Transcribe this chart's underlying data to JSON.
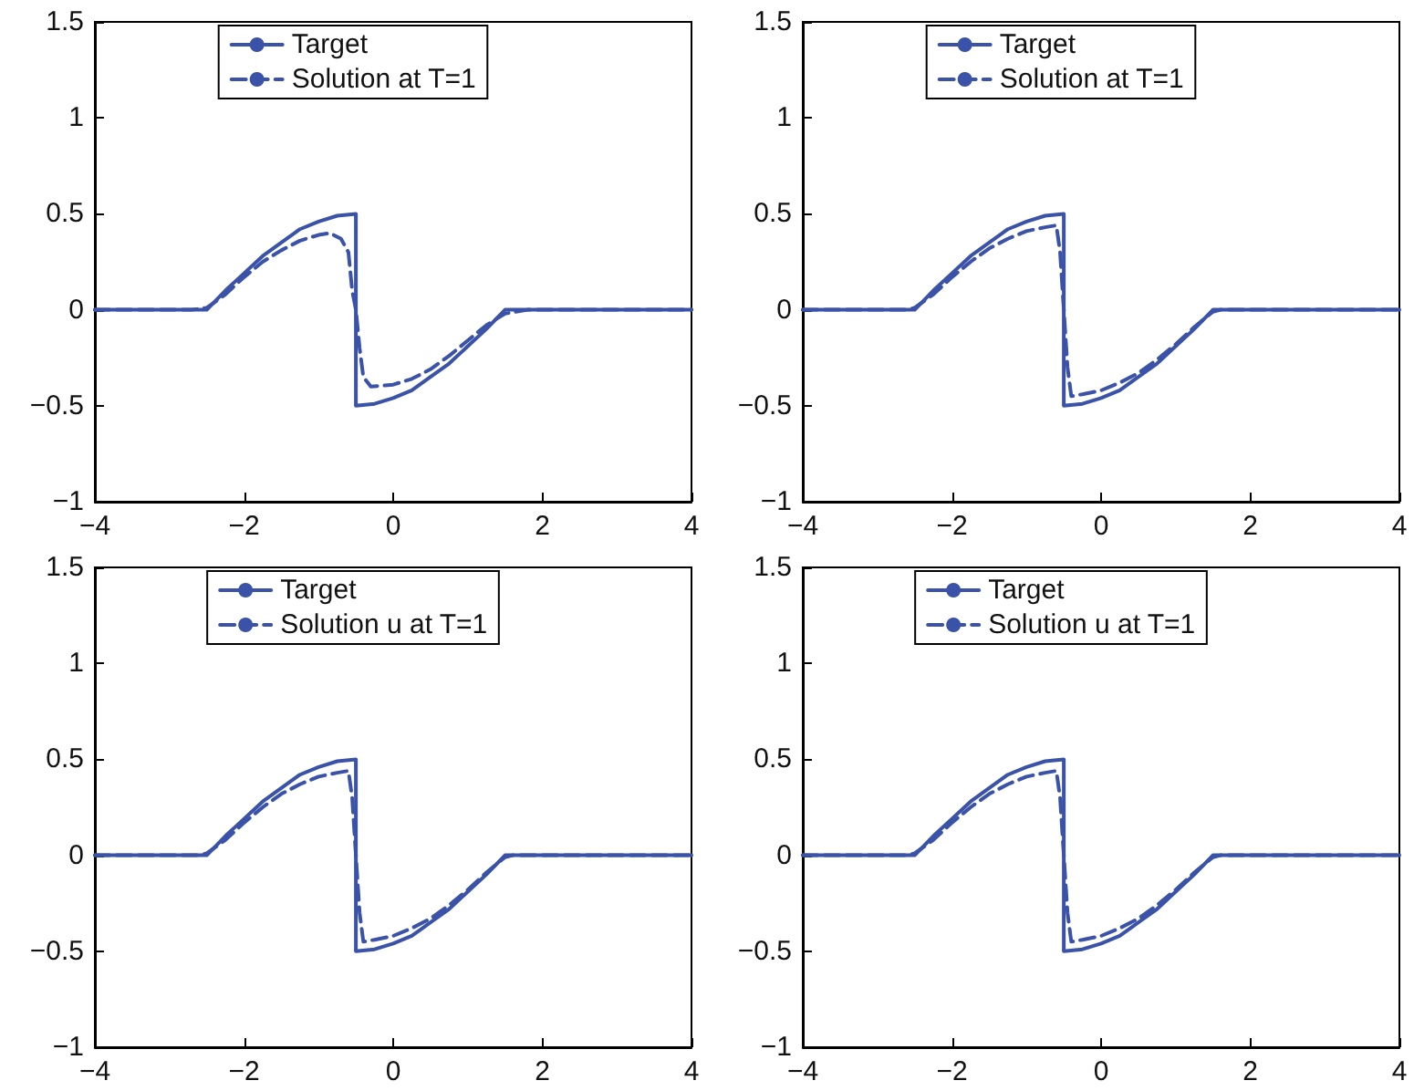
{
  "chart_data": [
    {
      "type": "line",
      "legend": "top",
      "line_style": "solid",
      "marker": "none",
      "xlim": [
        -4,
        4
      ],
      "xticks": [
        -4,
        -2,
        0,
        2,
        4
      ],
      "ylim": [
        -1,
        1.5
      ],
      "yticks": [
        -1,
        -0.5,
        0,
        0.5,
        1,
        1.5
      ],
      "grid": false,
      "series": [
        {
          "name": "Target",
          "color": "#3a52a8",
          "x": [
            -4,
            -2.5,
            -2.25,
            -2,
            -1.75,
            -1.5,
            -1.25,
            -1,
            -0.75,
            -0.5,
            -0.5,
            -0.25,
            0,
            0.25,
            0.5,
            0.75,
            1,
            1.25,
            1.5,
            4
          ],
          "values": [
            0,
            0,
            0.1,
            0.19,
            0.28,
            0.35,
            0.42,
            0.46,
            0.49,
            0.5,
            -0.5,
            -0.49,
            -0.46,
            -0.42,
            -0.35,
            -0.28,
            -0.19,
            -0.1,
            0,
            0
          ]
        },
        {
          "name": "Solution at T=1",
          "color": "#3a52a8",
          "line_style": "dashed",
          "x": [
            -4,
            -2.7,
            -2.5,
            -2.25,
            -2,
            -1.75,
            -1.5,
            -1.25,
            -1,
            -0.85,
            -0.7,
            -0.6,
            -0.55,
            -0.5,
            -0.45,
            -0.4,
            -0.3,
            0,
            0.25,
            0.5,
            0.75,
            1,
            1.25,
            1.5,
            1.8,
            4
          ],
          "values": [
            0,
            0,
            0.01,
            0.08,
            0.17,
            0.25,
            0.31,
            0.36,
            0.39,
            0.4,
            0.37,
            0.3,
            0.1,
            0,
            -0.2,
            -0.35,
            -0.4,
            -0.39,
            -0.36,
            -0.31,
            -0.24,
            -0.16,
            -0.08,
            -0.02,
            0,
            0
          ]
        }
      ]
    },
    {
      "type": "line",
      "legend": "top",
      "line_style": "solid",
      "marker": "none",
      "xlim": [
        -4,
        4
      ],
      "xticks": [
        -4,
        -2,
        0,
        2,
        4
      ],
      "ylim": [
        -1,
        1.5
      ],
      "yticks": [
        -1,
        -0.5,
        0,
        0.5,
        1,
        1.5
      ],
      "grid": false,
      "series": [
        {
          "name": "Target",
          "color": "#3a52a8",
          "x": [
            -4,
            -2.5,
            -2.25,
            -2,
            -1.75,
            -1.5,
            -1.25,
            -1,
            -0.75,
            -0.5,
            -0.5,
            -0.25,
            0,
            0.25,
            0.5,
            0.75,
            1,
            1.25,
            1.5,
            4
          ],
          "values": [
            0,
            0,
            0.1,
            0.19,
            0.28,
            0.35,
            0.42,
            0.46,
            0.49,
            0.5,
            -0.5,
            -0.49,
            -0.46,
            -0.42,
            -0.35,
            -0.28,
            -0.19,
            -0.1,
            0,
            0
          ]
        },
        {
          "name": "Solution at T=1",
          "color": "#3a52a8",
          "line_style": "dashed",
          "x": [
            -4,
            -2.6,
            -2.5,
            -2.25,
            -2,
            -1.75,
            -1.5,
            -1.25,
            -1,
            -0.75,
            -0.6,
            -0.55,
            -0.5,
            -0.45,
            -0.4,
            -0.25,
            0,
            0.25,
            0.5,
            0.75,
            1,
            1.25,
            1.5,
            1.6,
            4
          ],
          "values": [
            0,
            0,
            0.01,
            0.08,
            0.17,
            0.25,
            0.32,
            0.37,
            0.41,
            0.43,
            0.44,
            0.3,
            0,
            -0.3,
            -0.45,
            -0.44,
            -0.42,
            -0.38,
            -0.33,
            -0.26,
            -0.18,
            -0.09,
            -0.01,
            0,
            0
          ]
        }
      ]
    },
    {
      "type": "line",
      "legend": "top",
      "line_style": "solid",
      "marker": "none",
      "xlim": [
        -4,
        4
      ],
      "xticks": [
        -4,
        -2,
        0,
        2,
        4
      ],
      "ylim": [
        -1,
        1.5
      ],
      "yticks": [
        -1,
        -0.5,
        0,
        0.5,
        1,
        1.5
      ],
      "grid": false,
      "series": [
        {
          "name": "Target",
          "color": "#3a52a8",
          "x": [
            -4,
            -2.5,
            -2.25,
            -2,
            -1.75,
            -1.5,
            -1.25,
            -1,
            -0.75,
            -0.5,
            -0.5,
            -0.25,
            0,
            0.25,
            0.5,
            0.75,
            1,
            1.25,
            1.5,
            4
          ],
          "values": [
            0,
            0,
            0.1,
            0.19,
            0.28,
            0.35,
            0.42,
            0.46,
            0.49,
            0.5,
            -0.5,
            -0.49,
            -0.46,
            -0.42,
            -0.35,
            -0.28,
            -0.19,
            -0.1,
            0,
            0
          ]
        },
        {
          "name": "Solution u at T=1",
          "color": "#3a52a8",
          "line_style": "dashed",
          "x": [
            -4,
            -2.6,
            -2.5,
            -2.25,
            -2,
            -1.75,
            -1.5,
            -1.25,
            -1,
            -0.75,
            -0.6,
            -0.55,
            -0.5,
            -0.45,
            -0.4,
            -0.25,
            0,
            0.25,
            0.5,
            0.75,
            1,
            1.25,
            1.5,
            1.6,
            4
          ],
          "values": [
            0,
            0,
            0.01,
            0.08,
            0.17,
            0.25,
            0.32,
            0.37,
            0.41,
            0.43,
            0.44,
            0.3,
            0,
            -0.3,
            -0.45,
            -0.44,
            -0.42,
            -0.38,
            -0.33,
            -0.26,
            -0.18,
            -0.09,
            -0.01,
            0,
            0
          ]
        }
      ]
    },
    {
      "type": "line",
      "legend": "top",
      "line_style": "solid",
      "marker": "none",
      "xlim": [
        -4,
        4
      ],
      "xticks": [
        -4,
        -2,
        0,
        2,
        4
      ],
      "ylim": [
        -1,
        1.5
      ],
      "yticks": [
        -1,
        -0.5,
        0,
        0.5,
        1,
        1.5
      ],
      "grid": false,
      "series": [
        {
          "name": "Target",
          "color": "#3a52a8",
          "x": [
            -4,
            -2.5,
            -2.25,
            -2,
            -1.75,
            -1.5,
            -1.25,
            -1,
            -0.75,
            -0.5,
            -0.5,
            -0.25,
            0,
            0.25,
            0.5,
            0.75,
            1,
            1.25,
            1.5,
            4
          ],
          "values": [
            0,
            0,
            0.1,
            0.19,
            0.28,
            0.35,
            0.42,
            0.46,
            0.49,
            0.5,
            -0.5,
            -0.49,
            -0.46,
            -0.42,
            -0.35,
            -0.28,
            -0.19,
            -0.1,
            0,
            0
          ]
        },
        {
          "name": "Solution u at T=1",
          "color": "#3a52a8",
          "line_style": "dashed",
          "x": [
            -4,
            -2.6,
            -2.5,
            -2.25,
            -2,
            -1.75,
            -1.5,
            -1.25,
            -1,
            -0.75,
            -0.6,
            -0.55,
            -0.5,
            -0.45,
            -0.4,
            -0.25,
            0,
            0.25,
            0.5,
            0.75,
            1,
            1.25,
            1.5,
            1.6,
            4
          ],
          "values": [
            0,
            0,
            0.01,
            0.08,
            0.17,
            0.25,
            0.32,
            0.37,
            0.41,
            0.43,
            0.44,
            0.3,
            0,
            -0.3,
            -0.45,
            -0.44,
            -0.42,
            -0.38,
            -0.33,
            -0.26,
            -0.18,
            -0.09,
            -0.01,
            0,
            0
          ]
        }
      ]
    }
  ]
}
